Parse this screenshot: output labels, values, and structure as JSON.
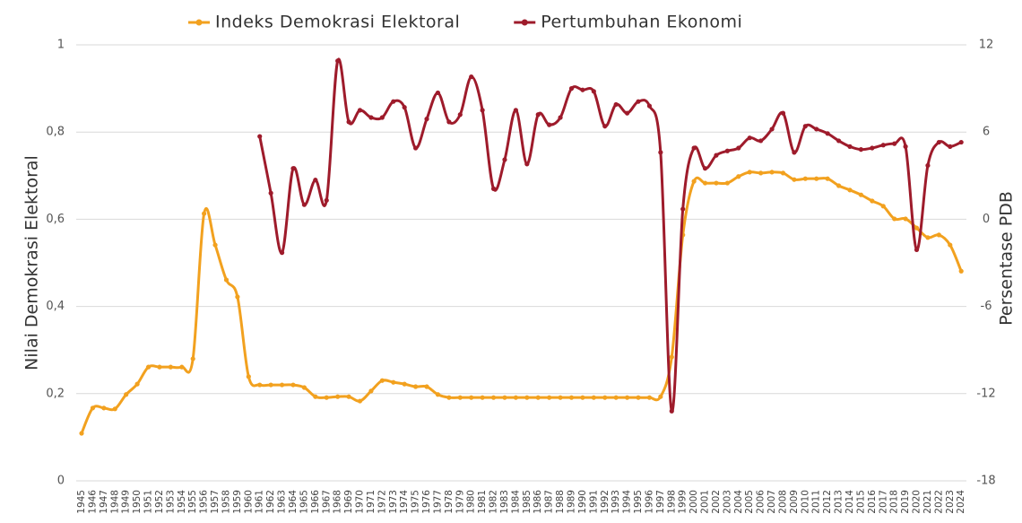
{
  "chart_data": {
    "type": "line",
    "y_label": "Nilai Demokrasi Elektoral",
    "y2_label": "Persentase PDB",
    "categories": [
      "1945",
      "1946",
      "1947",
      "1948",
      "1949",
      "1950",
      "1951",
      "1952",
      "1953",
      "1954",
      "1955",
      "1956",
      "1957",
      "1958",
      "1959",
      "1960",
      "1961",
      "1962",
      "1963",
      "1964",
      "1965",
      "1966",
      "1967",
      "1968",
      "1969",
      "1970",
      "1971",
      "1972",
      "1973",
      "1974",
      "1975",
      "1976",
      "1977",
      "1978",
      "1979",
      "1980",
      "1981",
      "1982",
      "1983",
      "1984",
      "1985",
      "1986",
      "1987",
      "1988",
      "1989",
      "1990",
      "1991",
      "1992",
      "1993",
      "1994",
      "1995",
      "1996",
      "1997",
      "1998",
      "1999",
      "2000",
      "2001",
      "2002",
      "2003",
      "2004",
      "2005",
      "2006",
      "2007",
      "2008",
      "2009",
      "2010",
      "2011",
      "2012",
      "2013",
      "2014",
      "2015",
      "2016",
      "2017",
      "2018",
      "2019",
      "2020",
      "2021",
      "2022",
      "2023",
      "2024"
    ],
    "series": [
      {
        "name": "Indeks Demokrasi Elektoral",
        "color": "#f2a11f",
        "axis": "y",
        "values": [
          0.109,
          0.167,
          0.167,
          0.165,
          0.198,
          0.222,
          0.261,
          0.261,
          0.261,
          0.261,
          0.28,
          0.613,
          0.541,
          0.461,
          0.422,
          0.239,
          0.22,
          0.22,
          0.22,
          0.22,
          0.214,
          0.193,
          0.191,
          0.193,
          0.193,
          0.183,
          0.206,
          0.23,
          0.226,
          0.222,
          0.216,
          0.216,
          0.198,
          0.191,
          0.191,
          0.191,
          0.191,
          0.191,
          0.191,
          0.191,
          0.191,
          0.191,
          0.191,
          0.191,
          0.191,
          0.191,
          0.191,
          0.191,
          0.191,
          0.191,
          0.191,
          0.191,
          0.193,
          0.284,
          0.564,
          0.687,
          0.683,
          0.683,
          0.683,
          0.698,
          0.708,
          0.706,
          0.708,
          0.706,
          0.691,
          0.693,
          0.693,
          0.693,
          0.677,
          0.667,
          0.656,
          0.642,
          0.63,
          0.601,
          0.601,
          0.58,
          0.558,
          0.564,
          0.541,
          0.481
        ]
      },
      {
        "name": "Pertumbuhan Ekonomi",
        "color": "#9e1b2b",
        "axis": "y2",
        "values": [
          null,
          null,
          null,
          null,
          null,
          null,
          null,
          null,
          null,
          null,
          null,
          null,
          null,
          null,
          null,
          null,
          5.7,
          1.8,
          -2.3,
          3.5,
          1.0,
          2.7,
          1.3,
          10.9,
          6.7,
          7.5,
          7.0,
          7.0,
          8.1,
          7.7,
          4.9,
          6.9,
          8.7,
          6.7,
          7.2,
          9.8,
          7.5,
          2.1,
          4.1,
          7.5,
          3.8,
          7.2,
          6.5,
          7.0,
          9.0,
          8.9,
          8.8,
          6.4,
          7.9,
          7.3,
          8.1,
          7.8,
          4.6,
          -13.2,
          0.7,
          4.9,
          3.5,
          4.4,
          4.7,
          4.9,
          5.6,
          5.4,
          6.2,
          7.3,
          4.6,
          6.4,
          6.2,
          5.9,
          5.4,
          5.0,
          4.8,
          4.9,
          5.1,
          5.2,
          5.0,
          -2.1,
          3.7,
          5.3,
          5.0,
          5.3
        ]
      }
    ],
    "ylim": [
      0,
      1
    ],
    "yticks": [
      0,
      {
        "value": 0.2,
        "label": "0,2"
      },
      {
        "value": 0.4,
        "label": "0,4"
      },
      {
        "value": 0.6,
        "label": "0,6"
      },
      {
        "value": 0.8,
        "label": "0,8"
      },
      1
    ],
    "y2lim": [
      -18,
      12
    ],
    "y2ticks": [
      -18,
      -12,
      -6,
      0,
      6,
      12
    ],
    "grid": true,
    "legend": "top"
  }
}
